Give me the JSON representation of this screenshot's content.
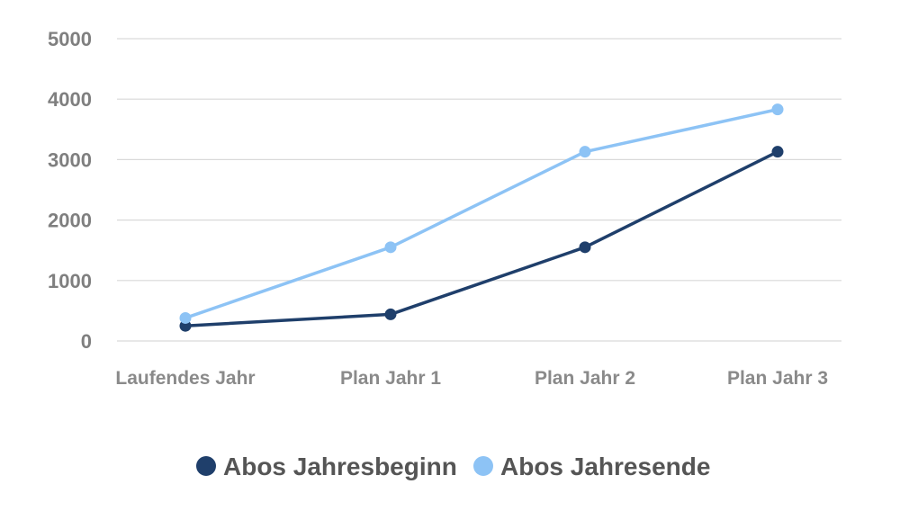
{
  "chart_data": {
    "type": "line",
    "categories": [
      "Laufendes Jahr",
      "Plan Jahr 1",
      "Plan Jahr 2",
      "Plan Jahr 3"
    ],
    "series": [
      {
        "name": "Abos Jahresbeginn",
        "values": [
          250,
          440,
          1550,
          3130
        ],
        "color": "#1f3f6b"
      },
      {
        "name": "Abos Jahresende",
        "values": [
          380,
          1550,
          3130,
          3830
        ],
        "color": "#8dc3f5"
      }
    ],
    "yticks": [
      "0",
      "1000",
      "2000",
      "3000",
      "4000",
      "5000"
    ],
    "ylim": [
      0,
      5000
    ],
    "grid": true,
    "legend_position": "bottom"
  }
}
